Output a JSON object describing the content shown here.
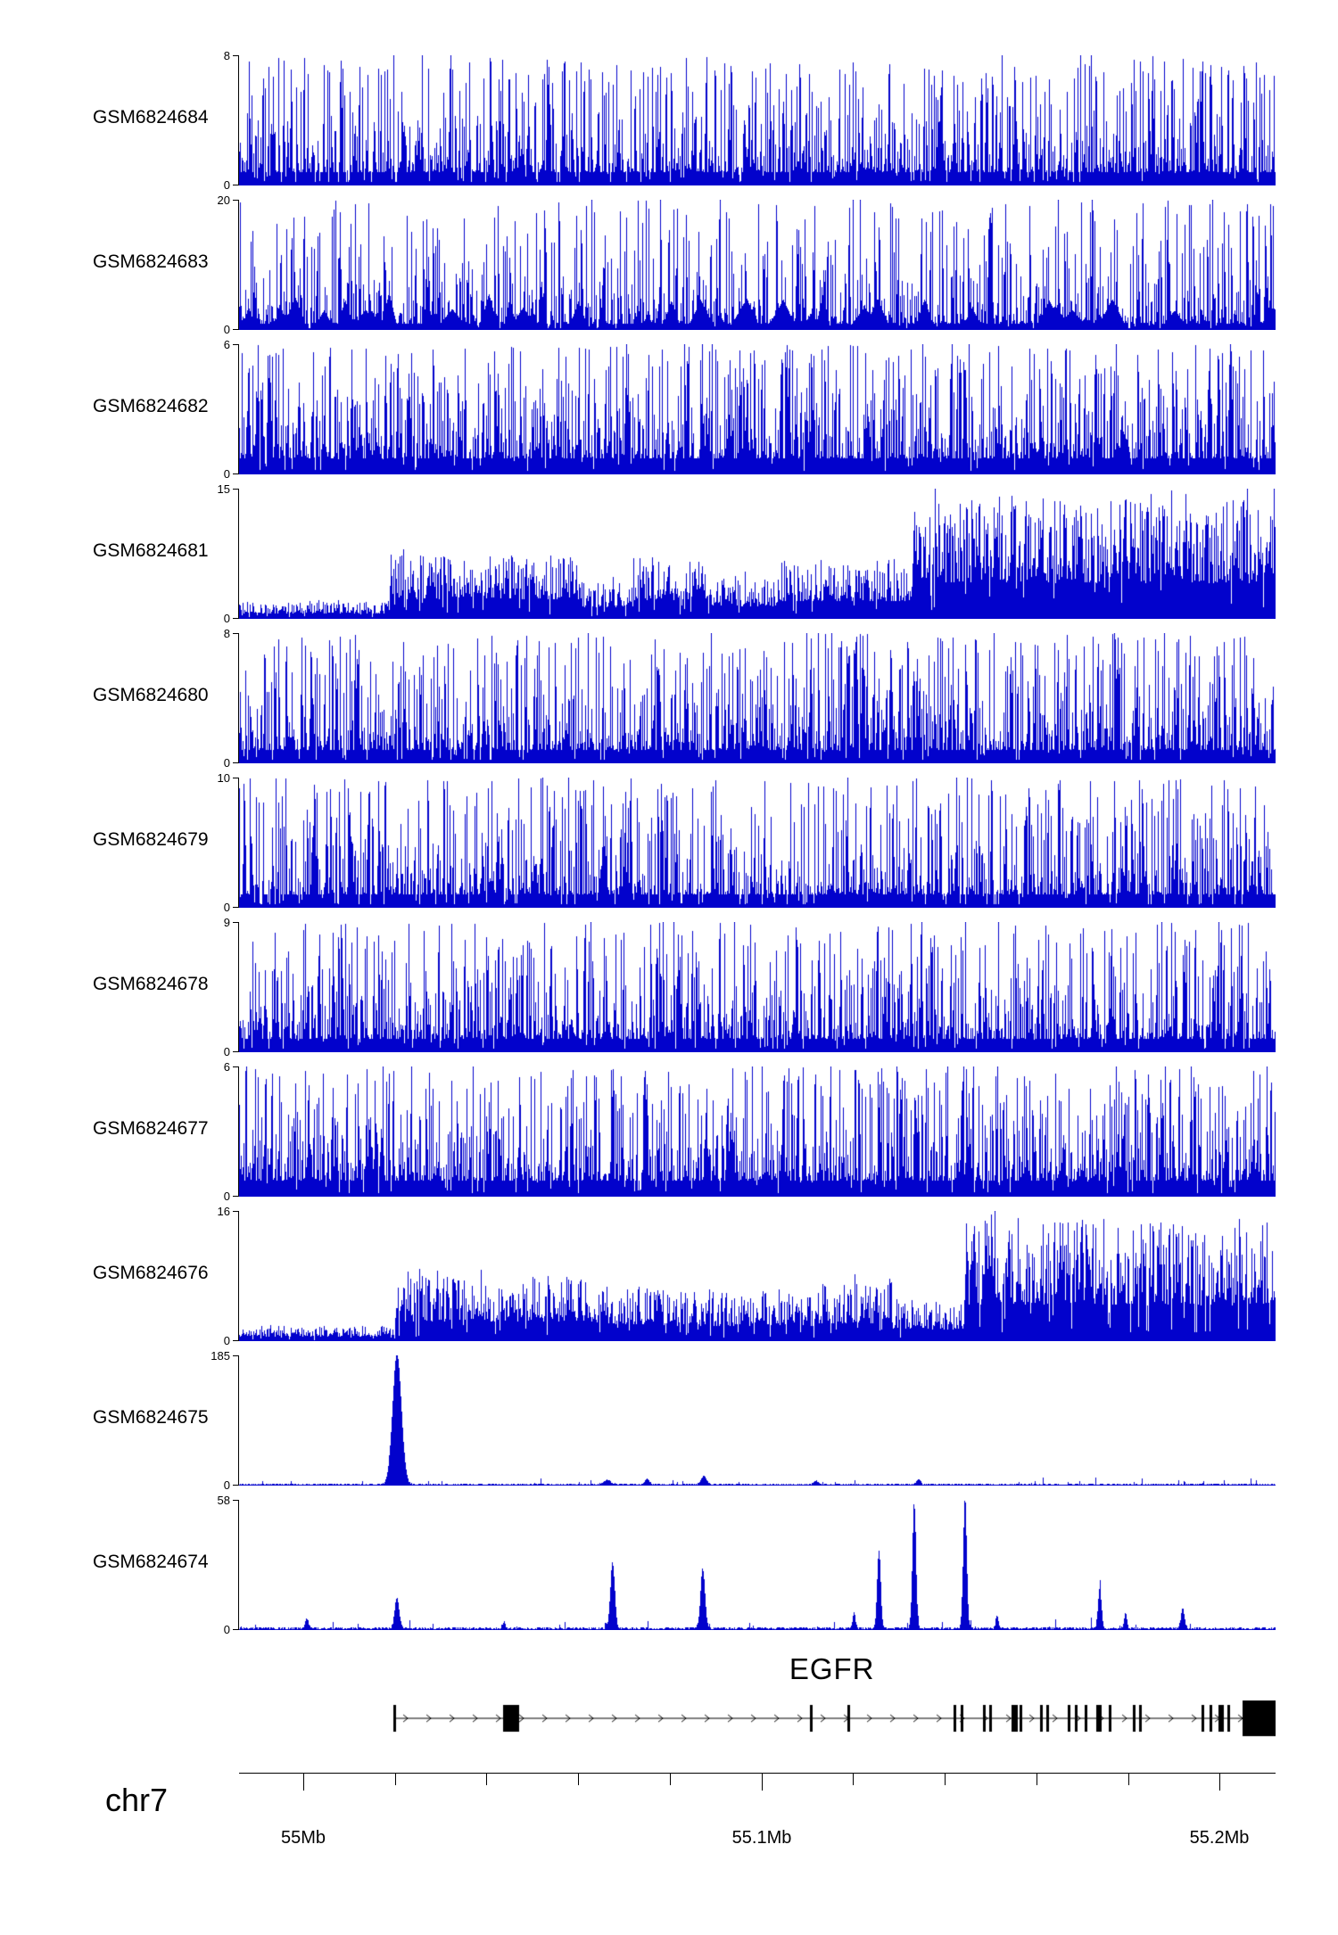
{
  "page": {
    "background": "#ffffff"
  },
  "chart_data": {
    "type": "area",
    "layout": "genome-browser-coverage-tracks",
    "title": "",
    "region": {
      "chromosome": "chr7",
      "start_label": "55Mb",
      "mid_label": "55.1Mb",
      "end_label": "55.2Mb",
      "locus_gene": "EGFR"
    },
    "signal_color": "#0202cc",
    "y_zero_label": "0",
    "tracks": [
      {
        "name": "GSM6824684",
        "ymax": 8,
        "seed": 11,
        "profile": "noise",
        "floor": 0.1,
        "expo": 2.6,
        "spike": 0.012,
        "gap": 0.12
      },
      {
        "name": "GSM6824683",
        "ymax": 20,
        "seed": 22,
        "profile": "noise",
        "floor": 0.05,
        "expo": 3.2,
        "spike": 0.02,
        "gap": 0.15,
        "blobs": {
          "count": 55,
          "amp": [
            0.08,
            0.3
          ],
          "width": [
            0.003,
            0.018
          ]
        }
      },
      {
        "name": "GSM6824682",
        "ymax": 6,
        "seed": 33,
        "profile": "noise",
        "floor": 0.12,
        "expo": 2.2,
        "spike": 0.015,
        "gap": 0.08
      },
      {
        "name": "GSM6824681",
        "ymax": 15,
        "seed": 44,
        "profile": "noise",
        "floor": 0.3,
        "expo": 1.6,
        "spike": 0.03,
        "gap": 0.05,
        "envelope": [
          [
            0,
            0.145,
            0.13
          ],
          [
            0.145,
            0.33,
            0.5
          ],
          [
            0.33,
            0.38,
            0.28
          ],
          [
            0.38,
            0.45,
            0.48
          ],
          [
            0.45,
            0.52,
            0.32
          ],
          [
            0.52,
            0.65,
            0.45
          ],
          [
            0.65,
            1.01,
            0.92
          ]
        ]
      },
      {
        "name": "GSM6824680",
        "ymax": 8,
        "seed": 55,
        "profile": "noise",
        "floor": 0.1,
        "expo": 2.4,
        "spike": 0.015,
        "gap": 0.1
      },
      {
        "name": "GSM6824679",
        "ymax": 10,
        "seed": 66,
        "profile": "noise",
        "floor": 0.1,
        "expo": 2.6,
        "spike": 0.012,
        "gap": 0.12
      },
      {
        "name": "GSM6824678",
        "ymax": 9,
        "seed": 77,
        "profile": "noise",
        "floor": 0.1,
        "expo": 2.6,
        "spike": 0.012,
        "gap": 0.1
      },
      {
        "name": "GSM6824677",
        "ymax": 6,
        "seed": 88,
        "profile": "noise",
        "floor": 0.12,
        "expo": 2.3,
        "spike": 0.012,
        "gap": 0.08
      },
      {
        "name": "GSM6824676",
        "ymax": 16,
        "seed": 99,
        "profile": "noise",
        "floor": 0.3,
        "expo": 1.6,
        "spike": 0.03,
        "gap": 0.05,
        "envelope": [
          [
            0,
            0.15,
            0.12
          ],
          [
            0.15,
            0.34,
            0.5
          ],
          [
            0.34,
            0.44,
            0.42
          ],
          [
            0.44,
            0.56,
            0.38
          ],
          [
            0.56,
            0.63,
            0.45
          ],
          [
            0.63,
            0.7,
            0.3
          ],
          [
            0.7,
            1.01,
            0.92
          ]
        ]
      },
      {
        "name": "GSM6824675",
        "ymax": 185,
        "seed": 110,
        "profile": "peaks",
        "base": 0.012,
        "peaks": [
          {
            "c": 0.152,
            "w": 0.01,
            "h": 1.0
          },
          {
            "c": 0.355,
            "w": 0.008,
            "h": 0.035
          },
          {
            "c": 0.393,
            "w": 0.005,
            "h": 0.045
          },
          {
            "c": 0.448,
            "w": 0.006,
            "h": 0.06
          },
          {
            "c": 0.556,
            "w": 0.005,
            "h": 0.03
          },
          {
            "c": 0.655,
            "w": 0.005,
            "h": 0.035
          }
        ]
      },
      {
        "name": "GSM6824674",
        "ymax": 58,
        "seed": 121,
        "profile": "peaks",
        "base": 0.018,
        "peaks": [
          {
            "c": 0.065,
            "w": 0.004,
            "h": 0.07
          },
          {
            "c": 0.152,
            "w": 0.005,
            "h": 0.24
          },
          {
            "c": 0.255,
            "w": 0.003,
            "h": 0.05
          },
          {
            "c": 0.36,
            "w": 0.005,
            "h": 0.5
          },
          {
            "c": 0.447,
            "w": 0.005,
            "h": 0.46
          },
          {
            "c": 0.593,
            "w": 0.003,
            "h": 0.12
          },
          {
            "c": 0.617,
            "w": 0.004,
            "h": 0.6
          },
          {
            "c": 0.651,
            "w": 0.004,
            "h": 0.95
          },
          {
            "c": 0.7,
            "w": 0.004,
            "h": 1.0
          },
          {
            "c": 0.731,
            "w": 0.003,
            "h": 0.1
          },
          {
            "c": 0.83,
            "w": 0.004,
            "h": 0.3
          },
          {
            "c": 0.855,
            "w": 0.003,
            "h": 0.12
          },
          {
            "c": 0.91,
            "w": 0.004,
            "h": 0.15
          }
        ]
      }
    ],
    "gene_track": {
      "label": "EGFR",
      "strand": "+",
      "start_f": 0.149,
      "end_f": 1.0,
      "label_center_f": 0.572,
      "exons": [
        {
          "f": 0.149,
          "w": 0.0026
        },
        {
          "f": 0.2545,
          "w": 0.0155
        },
        {
          "f": 0.5508,
          "w": 0.0026
        },
        {
          "f": 0.5867,
          "w": 0.0026
        },
        {
          "f": 0.6894,
          "w": 0.0026
        },
        {
          "f": 0.6966,
          "w": 0.0026
        },
        {
          "f": 0.7181,
          "w": 0.0026
        },
        {
          "f": 0.724,
          "w": 0.0026
        },
        {
          "f": 0.7455,
          "w": 0.006
        },
        {
          "f": 0.7527,
          "w": 0.0026
        },
        {
          "f": 0.773,
          "w": 0.0026
        },
        {
          "f": 0.779,
          "w": 0.0026
        },
        {
          "f": 0.7993,
          "w": 0.0026
        },
        {
          "f": 0.8064,
          "w": 0.0026
        },
        {
          "f": 0.816,
          "w": 0.0026
        },
        {
          "f": 0.8267,
          "w": 0.0048
        },
        {
          "f": 0.8387,
          "w": 0.0026
        },
        {
          "f": 0.8626,
          "w": 0.0026
        },
        {
          "f": 0.8686,
          "w": 0.0026
        },
        {
          "f": 0.9283,
          "w": 0.0026
        },
        {
          "f": 0.9367,
          "w": 0.0026
        },
        {
          "f": 0.945,
          "w": 0.0048
        },
        {
          "f": 0.9534,
          "w": 0.0026
        },
        {
          "f": 0.9678,
          "w": 0.0322,
          "big": true
        }
      ]
    },
    "ruler": {
      "chromosome_label": "chr7",
      "major_ticks": [
        {
          "label": "55Mb",
          "f": 0.062
        },
        {
          "label": "55.1Mb",
          "f": 0.504
        },
        {
          "label": "55.2Mb",
          "f": 0.946
        }
      ],
      "minor_ticks_f": [
        0.1504,
        0.2388,
        0.3272,
        0.4156,
        0.5924,
        0.6808,
        0.7692,
        0.8576
      ]
    }
  }
}
